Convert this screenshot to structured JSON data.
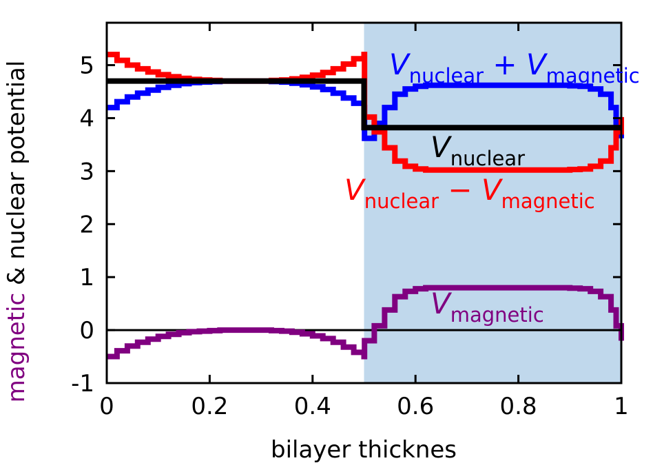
{
  "chart_data": {
    "type": "line",
    "xlabel": "bilayer thicknes",
    "ylabel": {
      "prefix": "magnetic",
      "prefix_color": "#800080",
      "rest": " & nuclear potential"
    },
    "xlim": [
      0,
      1
    ],
    "ylim": [
      -1,
      5.8
    ],
    "x_ticks": [
      0,
      0.2,
      0.4,
      0.6,
      0.8,
      1
    ],
    "x_tick_labels": [
      "0",
      "0.2",
      "0.4",
      "0.6",
      "0.8",
      "1"
    ],
    "y_ticks": [
      -1,
      0,
      1,
      2,
      3,
      4,
      5
    ],
    "y_tick_labels": [
      "-1",
      "0",
      "1",
      "2",
      "3",
      "4",
      "5"
    ],
    "grid": false,
    "shaded_region": {
      "x": [
        0.5,
        1.0
      ],
      "color": "#c0d8ec"
    },
    "zero_line": {
      "y": 0,
      "color": "#000000"
    },
    "series": [
      {
        "name": "V_nuclear + V_magnetic",
        "color": "#0000ff",
        "step": true,
        "x": [
          0,
          0.02,
          0.04,
          0.06,
          0.08,
          0.1,
          0.12,
          0.14,
          0.16,
          0.18,
          0.2,
          0.22,
          0.24,
          0.26,
          0.28,
          0.3,
          0.32,
          0.34,
          0.36,
          0.38,
          0.4,
          0.42,
          0.44,
          0.46,
          0.48,
          0.5,
          0.501,
          0.52,
          0.54,
          0.56,
          0.58,
          0.6,
          0.62,
          0.64,
          0.66,
          0.68,
          0.7,
          0.72,
          0.74,
          0.76,
          0.78,
          0.8,
          0.82,
          0.84,
          0.86,
          0.88,
          0.9,
          0.92,
          0.94,
          0.96,
          0.98,
          0.99,
          1.0
        ],
        "y": [
          4.2,
          4.31,
          4.4,
          4.47,
          4.53,
          4.58,
          4.62,
          4.65,
          4.67,
          4.68,
          4.69,
          4.7,
          4.7,
          4.7,
          4.7,
          4.7,
          4.69,
          4.68,
          4.66,
          4.63,
          4.59,
          4.54,
          4.47,
          4.38,
          4.28,
          4.2,
          3.62,
          3.9,
          4.2,
          4.45,
          4.55,
          4.6,
          4.62,
          4.62,
          4.62,
          4.62,
          4.62,
          4.62,
          4.62,
          4.62,
          4.62,
          4.62,
          4.62,
          4.62,
          4.62,
          4.62,
          4.61,
          4.6,
          4.55,
          4.45,
          4.2,
          3.9,
          3.62
        ]
      },
      {
        "name": "V_nuclear - V_magnetic",
        "color": "#ff0000",
        "step": true,
        "x": [
          0,
          0.02,
          0.04,
          0.06,
          0.08,
          0.1,
          0.12,
          0.14,
          0.16,
          0.18,
          0.2,
          0.22,
          0.24,
          0.26,
          0.28,
          0.3,
          0.32,
          0.34,
          0.36,
          0.38,
          0.4,
          0.42,
          0.44,
          0.46,
          0.48,
          0.5,
          0.501,
          0.52,
          0.54,
          0.56,
          0.58,
          0.6,
          0.62,
          0.64,
          0.66,
          0.68,
          0.7,
          0.72,
          0.74,
          0.76,
          0.78,
          0.8,
          0.82,
          0.84,
          0.86,
          0.88,
          0.9,
          0.92,
          0.94,
          0.96,
          0.98,
          0.99,
          1.0
        ],
        "y": [
          5.2,
          5.09,
          5.0,
          4.93,
          4.87,
          4.82,
          4.78,
          4.75,
          4.73,
          4.72,
          4.71,
          4.7,
          4.7,
          4.7,
          4.7,
          4.7,
          4.71,
          4.72,
          4.74,
          4.77,
          4.81,
          4.86,
          4.93,
          5.02,
          5.12,
          5.2,
          4.02,
          3.74,
          3.44,
          3.19,
          3.09,
          3.04,
          3.02,
          3.02,
          3.02,
          3.02,
          3.02,
          3.02,
          3.02,
          3.02,
          3.02,
          3.02,
          3.02,
          3.02,
          3.02,
          3.02,
          3.03,
          3.04,
          3.09,
          3.19,
          3.44,
          3.74,
          4.02
        ]
      },
      {
        "name": "V_nuclear",
        "color": "#000000",
        "step": true,
        "x": [
          0,
          0.5,
          0.5,
          1.0
        ],
        "y": [
          4.7,
          4.7,
          3.82,
          3.82
        ]
      },
      {
        "name": "V_magnetic",
        "color": "#800080",
        "step": true,
        "x": [
          0,
          0.02,
          0.04,
          0.06,
          0.08,
          0.1,
          0.12,
          0.14,
          0.16,
          0.18,
          0.2,
          0.22,
          0.24,
          0.26,
          0.28,
          0.3,
          0.32,
          0.34,
          0.36,
          0.38,
          0.4,
          0.42,
          0.44,
          0.46,
          0.48,
          0.5,
          0.501,
          0.52,
          0.54,
          0.56,
          0.58,
          0.6,
          0.62,
          0.64,
          0.66,
          0.68,
          0.7,
          0.72,
          0.74,
          0.76,
          0.78,
          0.8,
          0.82,
          0.84,
          0.86,
          0.88,
          0.9,
          0.92,
          0.94,
          0.96,
          0.98,
          0.99,
          1.0
        ],
        "y": [
          -0.5,
          -0.39,
          -0.3,
          -0.23,
          -0.17,
          -0.12,
          -0.08,
          -0.05,
          -0.03,
          -0.02,
          -0.01,
          0.0,
          0.0,
          0.0,
          0.0,
          0.0,
          -0.01,
          -0.02,
          -0.04,
          -0.07,
          -0.11,
          -0.16,
          -0.23,
          -0.32,
          -0.42,
          -0.5,
          -0.2,
          0.08,
          0.38,
          0.63,
          0.73,
          0.78,
          0.8,
          0.8,
          0.8,
          0.8,
          0.8,
          0.8,
          0.8,
          0.8,
          0.8,
          0.8,
          0.8,
          0.8,
          0.8,
          0.8,
          0.79,
          0.78,
          0.73,
          0.63,
          0.38,
          0.08,
          -0.2
        ]
      }
    ],
    "annotations": [
      {
        "V": "V",
        "sub1": "nuclear",
        "op": " + ",
        "V2": "V",
        "sub2": "magnetic",
        "color": "#0000ff"
      },
      {
        "V": "V",
        "sub1": "nuclear",
        "color": "#000000"
      },
      {
        "V": "V",
        "sub1": "nuclear",
        "op": " − ",
        "V2": "V",
        "sub2": "magnetic",
        "color": "#ff0000"
      },
      {
        "V": "V",
        "sub1": "magnetic",
        "color": "#800080"
      }
    ]
  }
}
